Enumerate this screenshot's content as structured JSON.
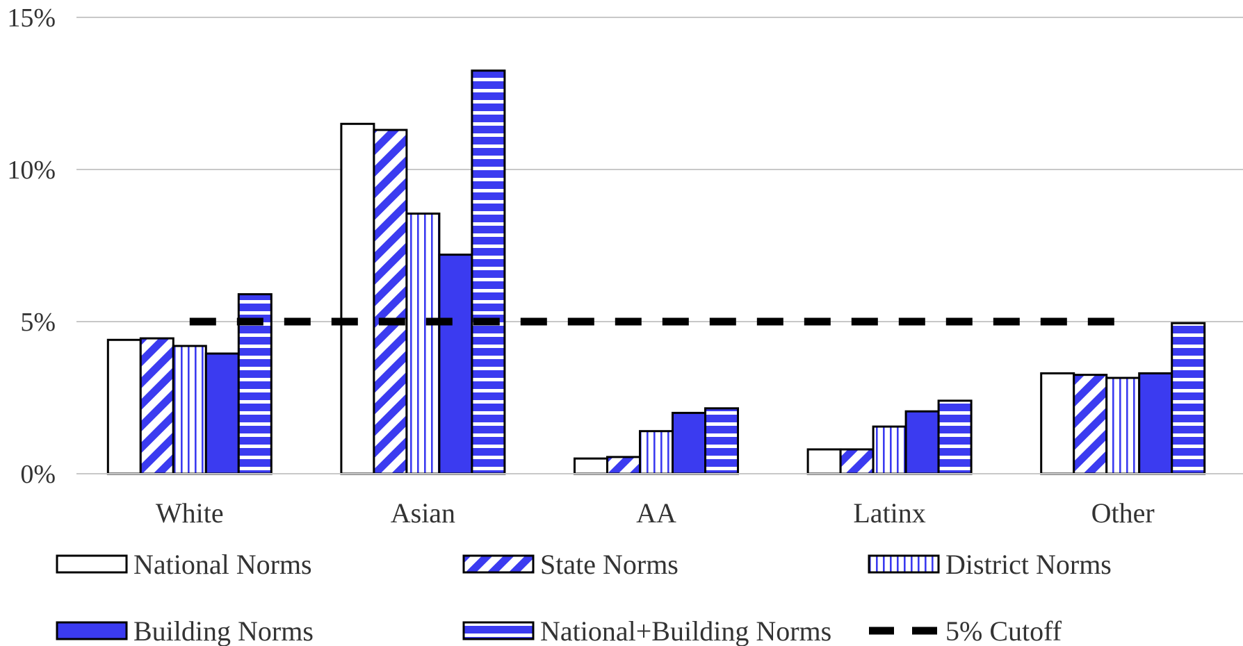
{
  "chart_data": {
    "type": "bar",
    "categories": [
      "White",
      "Asian",
      "AA",
      "Latinx",
      "Other"
    ],
    "series": [
      {
        "name": "National Norms",
        "pattern": "none",
        "values": [
          4.4,
          11.5,
          0.5,
          0.8,
          3.3
        ]
      },
      {
        "name": "State Norms",
        "pattern": "diagonal",
        "values": [
          4.45,
          11.3,
          0.55,
          0.8,
          3.25
        ]
      },
      {
        "name": "District Norms",
        "pattern": "vertical",
        "values": [
          4.2,
          8.55,
          1.4,
          1.55,
          3.15
        ]
      },
      {
        "name": "Building Norms",
        "pattern": "solid",
        "values": [
          3.95,
          7.2,
          2.0,
          2.05,
          3.3
        ]
      },
      {
        "name": "National+Building Norms",
        "pattern": "horizontal",
        "values": [
          5.9,
          13.25,
          2.15,
          2.4,
          4.95
        ]
      }
    ],
    "reference_line": {
      "name": "5% Cutoff",
      "value": 5,
      "style": "dashed",
      "from_category": "White",
      "to_category": "Other"
    },
    "y_ticks": [
      "0%",
      "5%",
      "10%",
      "15%"
    ],
    "y_tick_values": [
      0,
      5,
      10,
      15
    ],
    "ylim": [
      0,
      15
    ],
    "xlabel": "",
    "ylabel": "",
    "title": "",
    "grid": true,
    "legend_position": "bottom",
    "colors": {
      "fill": "#3b3bf0",
      "outline": "#000000",
      "grid": "#c8c8c8",
      "text": "#333333"
    }
  }
}
